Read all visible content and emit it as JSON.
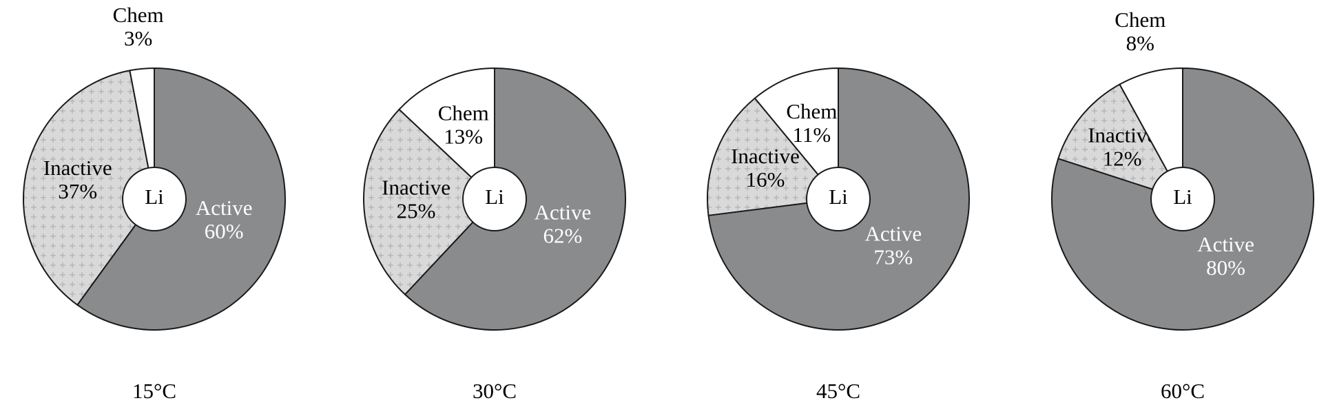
{
  "chart_data": [
    {
      "type": "pie",
      "title": "15°C",
      "center_label": "Li",
      "categories": [
        "Active",
        "Inactive",
        "Chem"
      ],
      "values": [
        60,
        37,
        3
      ],
      "value_labels": [
        "60%",
        "37%",
        "3%"
      ],
      "colors": [
        "#8a8b8d",
        "#d9d9d9",
        "#ffffff"
      ]
    },
    {
      "type": "pie",
      "title": "30°C",
      "center_label": "Li",
      "categories": [
        "Active",
        "Inactive",
        "Chem"
      ],
      "values": [
        62,
        25,
        13
      ],
      "value_labels": [
        "62%",
        "25%",
        "13%"
      ],
      "colors": [
        "#8a8b8d",
        "#d9d9d9",
        "#ffffff"
      ]
    },
    {
      "type": "pie",
      "title": "45°C",
      "center_label": "Li",
      "categories": [
        "Active",
        "Inactive",
        "Chem"
      ],
      "values": [
        73,
        16,
        11
      ],
      "value_labels": [
        "73%",
        "16%",
        "11%"
      ],
      "colors": [
        "#8a8b8d",
        "#d9d9d9",
        "#ffffff"
      ]
    },
    {
      "type": "pie",
      "title": "60°C",
      "center_label": "Li",
      "categories": [
        "Active",
        "Inactive",
        "Chem"
      ],
      "values": [
        80,
        12,
        8
      ],
      "value_labels": [
        "80%",
        "12%",
        "8%"
      ],
      "colors": [
        "#8a8b8d",
        "#d9d9d9",
        "#ffffff"
      ]
    }
  ]
}
